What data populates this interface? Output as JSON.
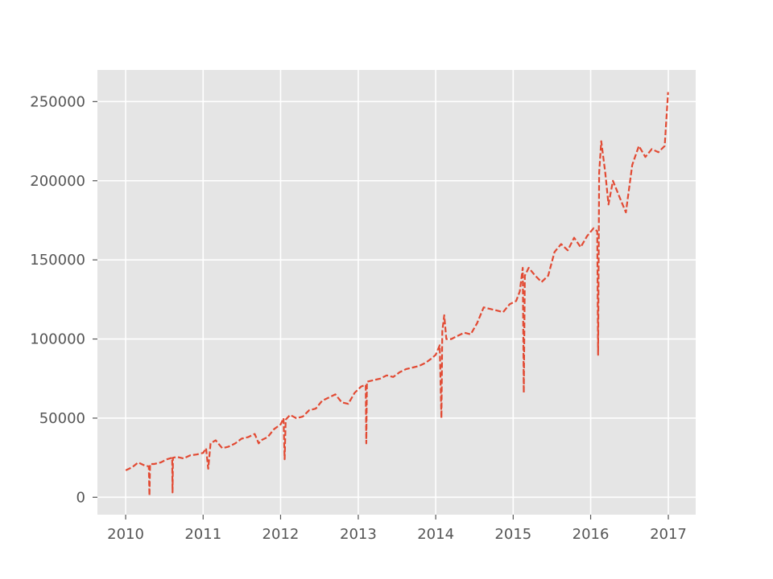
{
  "chart_data": {
    "type": "line",
    "title": "",
    "xlabel": "",
    "ylabel": "",
    "x_range": [
      "2009-08-21",
      "2017-05-10"
    ],
    "ylim": [
      -11000,
      270000
    ],
    "xticks": [
      {
        "date": "2010-01-01",
        "label": "2010"
      },
      {
        "date": "2011-01-01",
        "label": "2011"
      },
      {
        "date": "2012-01-01",
        "label": "2012"
      },
      {
        "date": "2013-01-01",
        "label": "2013"
      },
      {
        "date": "2014-01-01",
        "label": "2014"
      },
      {
        "date": "2015-01-01",
        "label": "2015"
      },
      {
        "date": "2016-01-01",
        "label": "2016"
      },
      {
        "date": "2017-01-01",
        "label": "2017"
      }
    ],
    "yticks": [
      {
        "value": 0,
        "label": "0"
      },
      {
        "value": 50000,
        "label": "50000"
      },
      {
        "value": 100000,
        "label": "100000"
      },
      {
        "value": 150000,
        "label": "150000"
      },
      {
        "value": 200000,
        "label": "200000"
      },
      {
        "value": 250000,
        "label": "250000"
      }
    ],
    "grid": true,
    "legend": "none",
    "colors": {
      "line": "#E24A33",
      "background": "#E5E5E5",
      "grid": "#FFFFFF",
      "tick_text": "#555555"
    },
    "series": [
      {
        "line_style": "dashed",
        "points": [
          [
            "2010-01-01",
            17000
          ],
          [
            "2010-02-01",
            19000
          ],
          [
            "2010-03-01",
            22000
          ],
          [
            "2010-04-01",
            20000
          ],
          [
            "2010-04-20",
            19500
          ],
          [
            "2010-04-23",
            1000
          ],
          [
            "2010-04-26",
            21000
          ],
          [
            "2010-05-15",
            21000
          ],
          [
            "2010-06-15",
            22000
          ],
          [
            "2010-07-15",
            24000
          ],
          [
            "2010-08-08",
            25000
          ],
          [
            "2010-08-10",
            3000
          ],
          [
            "2010-08-12",
            25000
          ],
          [
            "2010-09-01",
            25500
          ],
          [
            "2010-10-01",
            24500
          ],
          [
            "2010-11-01",
            26500
          ],
          [
            "2010-12-01",
            27000
          ],
          [
            "2011-01-01",
            28000
          ],
          [
            "2011-01-15",
            31000
          ],
          [
            "2011-01-25",
            18000
          ],
          [
            "2011-02-05",
            34000
          ],
          [
            "2011-03-01",
            36000
          ],
          [
            "2011-04-01",
            31000
          ],
          [
            "2011-05-01",
            32000
          ],
          [
            "2011-06-01",
            34000
          ],
          [
            "2011-07-01",
            37000
          ],
          [
            "2011-08-01",
            38000
          ],
          [
            "2011-09-01",
            40000
          ],
          [
            "2011-09-20",
            34000
          ],
          [
            "2011-10-01",
            36000
          ],
          [
            "2011-11-01",
            38000
          ],
          [
            "2011-12-01",
            43000
          ],
          [
            "2012-01-01",
            46000
          ],
          [
            "2012-01-15",
            50000
          ],
          [
            "2012-01-20",
            24000
          ],
          [
            "2012-01-25",
            49000
          ],
          [
            "2012-02-15",
            52000
          ],
          [
            "2012-03-15",
            50000
          ],
          [
            "2012-04-15",
            51000
          ],
          [
            "2012-05-15",
            55000
          ],
          [
            "2012-06-15",
            56000
          ],
          [
            "2012-07-15",
            61000
          ],
          [
            "2012-08-15",
            63000
          ],
          [
            "2012-09-15",
            65000
          ],
          [
            "2012-10-15",
            60000
          ],
          [
            "2012-11-15",
            59000
          ],
          [
            "2012-12-15",
            66000
          ],
          [
            "2013-01-15",
            70000
          ],
          [
            "2013-02-05",
            71000
          ],
          [
            "2013-02-08",
            34000
          ],
          [
            "2013-02-11",
            73000
          ],
          [
            "2013-03-15",
            74000
          ],
          [
            "2013-04-15",
            75000
          ],
          [
            "2013-05-15",
            77000
          ],
          [
            "2013-06-15",
            76000
          ],
          [
            "2013-07-15",
            79000
          ],
          [
            "2013-08-15",
            81000
          ],
          [
            "2013-09-15",
            82000
          ],
          [
            "2013-10-15",
            83000
          ],
          [
            "2013-11-15",
            85000
          ],
          [
            "2013-12-15",
            88000
          ],
          [
            "2014-01-01",
            90000
          ],
          [
            "2014-01-20",
            96000
          ],
          [
            "2014-01-28",
            50000
          ],
          [
            "2014-02-01",
            105000
          ],
          [
            "2014-02-10",
            115000
          ],
          [
            "2014-02-20",
            100000
          ],
          [
            "2014-03-15",
            100000
          ],
          [
            "2014-04-15",
            102000
          ],
          [
            "2014-05-15",
            104000
          ],
          [
            "2014-06-15",
            103000
          ],
          [
            "2014-07-15",
            110000
          ],
          [
            "2014-08-15",
            120000
          ],
          [
            "2014-09-15",
            119000
          ],
          [
            "2014-10-15",
            118000
          ],
          [
            "2014-11-15",
            117000
          ],
          [
            "2014-12-15",
            122000
          ],
          [
            "2015-01-15",
            124000
          ],
          [
            "2015-02-01",
            130000
          ],
          [
            "2015-02-15",
            145000
          ],
          [
            "2015-02-20",
            66000
          ],
          [
            "2015-02-25",
            140000
          ],
          [
            "2015-03-15",
            145000
          ],
          [
            "2015-04-15",
            140000
          ],
          [
            "2015-05-15",
            136000
          ],
          [
            "2015-06-15",
            140000
          ],
          [
            "2015-07-15",
            155000
          ],
          [
            "2015-08-15",
            160000
          ],
          [
            "2015-09-15",
            156000
          ],
          [
            "2015-10-15",
            164000
          ],
          [
            "2015-11-15",
            158000
          ],
          [
            "2015-12-15",
            165000
          ],
          [
            "2016-01-15",
            170000
          ],
          [
            "2016-02-01",
            168000
          ],
          [
            "2016-02-05",
            90000
          ],
          [
            "2016-02-10",
            205000
          ],
          [
            "2016-02-20",
            225000
          ],
          [
            "2016-03-10",
            205000
          ],
          [
            "2016-03-25",
            185000
          ],
          [
            "2016-04-15",
            200000
          ],
          [
            "2016-05-15",
            190000
          ],
          [
            "2016-06-15",
            180000
          ],
          [
            "2016-07-15",
            210000
          ],
          [
            "2016-08-15",
            222000
          ],
          [
            "2016-09-15",
            215000
          ],
          [
            "2016-10-15",
            220000
          ],
          [
            "2016-11-15",
            218000
          ],
          [
            "2016-12-15",
            222000
          ],
          [
            "2016-12-31",
            256000
          ]
        ]
      }
    ]
  }
}
